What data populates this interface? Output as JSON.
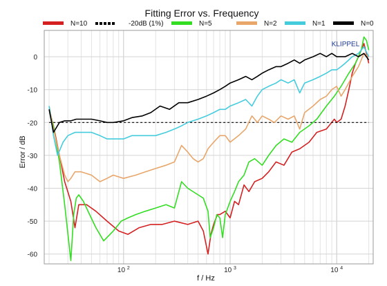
{
  "chart_data": {
    "type": "line",
    "title": "Fitting Error vs. Frequency",
    "xlabel": "f / Hz",
    "ylabel": "Error / dB",
    "xscale": "log",
    "xlim": [
      18,
      22000
    ],
    "ylim": [
      -63,
      8
    ],
    "x_ticks": [
      100,
      1000,
      10000
    ],
    "x_tick_labels": [
      "10 2",
      "10 3",
      "10 4"
    ],
    "y_ticks": [
      0,
      -10,
      -20,
      -30,
      -40,
      -50,
      -60
    ],
    "grid": true,
    "legend_position": "top",
    "watermark": "KLIPPEL",
    "series": [
      {
        "name": "N=10",
        "color": "#d42020",
        "dash": false,
        "x": [
          20,
          22,
          25,
          28,
          32,
          35,
          38,
          45,
          55,
          70,
          90,
          110,
          140,
          180,
          230,
          300,
          400,
          500,
          560,
          620,
          660,
          700,
          760,
          800,
          900,
          1000,
          1100,
          1200,
          1350,
          1500,
          1700,
          2000,
          2300,
          2700,
          3200,
          3800,
          4500,
          5500,
          6500,
          8000,
          9500,
          10000,
          11000,
          12000,
          13000,
          14000,
          15000,
          16000,
          17000,
          18000,
          19000,
          20000
        ],
        "y": [
          -16,
          -21,
          -30,
          -38,
          -44,
          -52,
          -45,
          -45,
          -47,
          -50,
          -53,
          -54,
          -52,
          -51,
          -51,
          -50,
          -51,
          -50,
          -53,
          -60,
          -54,
          -51,
          -48,
          -48,
          -47,
          -49,
          -44,
          -45,
          -39,
          -41,
          -38,
          -37,
          -35,
          -32,
          -33,
          -29,
          -28,
          -26,
          -23,
          -22,
          -19,
          -20,
          -19,
          -15,
          -10,
          -5,
          -2,
          0,
          2,
          4,
          1,
          -2
        ]
      },
      {
        "name": "-20dB (1%)",
        "color": "#000000",
        "dash": true,
        "x": [
          20,
          20000
        ],
        "y": [
          -20,
          -20
        ]
      },
      {
        "name": "N=5",
        "color": "#33dd22",
        "dash": false,
        "x": [
          20,
          22,
          25,
          28,
          32,
          33,
          34,
          36,
          38,
          42,
          48,
          55,
          65,
          80,
          95,
          110,
          130,
          160,
          200,
          250,
          300,
          350,
          400,
          500,
          560,
          620,
          650,
          700,
          750,
          800,
          850,
          900,
          1000,
          1100,
          1200,
          1350,
          1500,
          1700,
          2000,
          2300,
          2700,
          3200,
          3800,
          4500,
          5500,
          6500,
          8000,
          9500,
          11000,
          13000,
          15000,
          17000,
          18000,
          19000,
          20000
        ],
        "y": [
          -16,
          -21,
          -32,
          -45,
          -62,
          -55,
          -48,
          -43,
          -42,
          -44,
          -48,
          -52,
          -56,
          -53,
          -50,
          -49,
          -48,
          -47,
          -46,
          -45,
          -46,
          -38,
          -40,
          -42,
          -43,
          -47,
          -55,
          -52,
          -48,
          -49,
          -55,
          -48,
          -44,
          -41,
          -38,
          -36,
          -32,
          -31,
          -33,
          -30,
          -27,
          -25,
          -26,
          -23,
          -21,
          -19,
          -15,
          -12,
          -9,
          -5,
          -2,
          2,
          6,
          5,
          2
        ]
      },
      {
        "name": "N=2",
        "color": "#e8a66a",
        "dash": false,
        "x": [
          20,
          22,
          25,
          28,
          30,
          32,
          35,
          40,
          50,
          60,
          70,
          80,
          100,
          130,
          160,
          200,
          250,
          300,
          350,
          400,
          450,
          500,
          560,
          620,
          700,
          800,
          900,
          1000,
          1200,
          1400,
          1600,
          1800,
          2000,
          2300,
          2600,
          3000,
          3500,
          4000,
          4500,
          5000,
          6000,
          7000,
          8000,
          9000,
          10000,
          11000,
          12000,
          14000,
          16000,
          18000,
          20000
        ],
        "y": [
          -15,
          -22,
          -30,
          -36,
          -38,
          -37,
          -35,
          -35,
          -36,
          -38,
          -37,
          -36,
          -37,
          -36,
          -35,
          -34,
          -33,
          -32,
          -27,
          -29,
          -31,
          -32,
          -31,
          -28,
          -26,
          -24,
          -24,
          -26,
          -24,
          -22,
          -18,
          -20,
          -18,
          -19,
          -20,
          -18,
          -19,
          -18,
          -22,
          -17,
          -15,
          -13,
          -12,
          -10,
          -9,
          -12,
          -10,
          -6,
          -3,
          1,
          0
        ]
      },
      {
        "name": "N=1",
        "color": "#44ccdd",
        "dash": false,
        "x": [
          20,
          22,
          24,
          27,
          30,
          35,
          40,
          50,
          60,
          70,
          80,
          100,
          120,
          150,
          200,
          250,
          300,
          350,
          400,
          500,
          600,
          700,
          800,
          900,
          1000,
          1200,
          1400,
          1600,
          1800,
          2000,
          2300,
          2700,
          3000,
          3500,
          4000,
          4500,
          5000,
          6000,
          7000,
          8000,
          9000,
          10000,
          11000,
          12000,
          14000,
          16000,
          18000,
          20000
        ],
        "y": [
          -15,
          -24,
          -30,
          -26,
          -24,
          -23,
          -23,
          -23,
          -24,
          -25,
          -25,
          -25,
          -24,
          -24,
          -24,
          -23,
          -22,
          -21,
          -20,
          -19,
          -18,
          -17,
          -16,
          -16,
          -15,
          -14,
          -13,
          -15,
          -12,
          -10,
          -9,
          -8,
          -7,
          -8,
          -7,
          -11,
          -8,
          -7,
          -6,
          -5,
          -4,
          -4,
          -3,
          -2,
          0,
          1,
          3,
          0
        ]
      },
      {
        "name": "N=0",
        "color": "#000000",
        "dash": false,
        "x": [
          20,
          22,
          25,
          28,
          32,
          36,
          40,
          50,
          60,
          70,
          80,
          100,
          120,
          150,
          180,
          220,
          270,
          330,
          400,
          500,
          600,
          700,
          800,
          900,
          1000,
          1200,
          1400,
          1600,
          1800,
          2000,
          2300,
          2700,
          3000,
          3500,
          4000,
          4500,
          5000,
          6000,
          7000,
          8000,
          9000,
          10000,
          12000,
          14000,
          16000,
          18000,
          20000
        ],
        "y": [
          -16,
          -23,
          -20,
          -19.5,
          -19.5,
          -19,
          -19,
          -19,
          -19.5,
          -20,
          -20,
          -19.5,
          -18.5,
          -18,
          -17,
          -15,
          -16,
          -14,
          -14,
          -13,
          -12,
          -11,
          -10,
          -9,
          -8,
          -7,
          -6,
          -7,
          -6,
          -5,
          -4,
          -3,
          -3,
          -2,
          -1,
          -2,
          -1,
          0,
          1,
          0,
          1,
          0,
          0,
          1,
          0,
          1,
          -1
        ]
      }
    ]
  }
}
